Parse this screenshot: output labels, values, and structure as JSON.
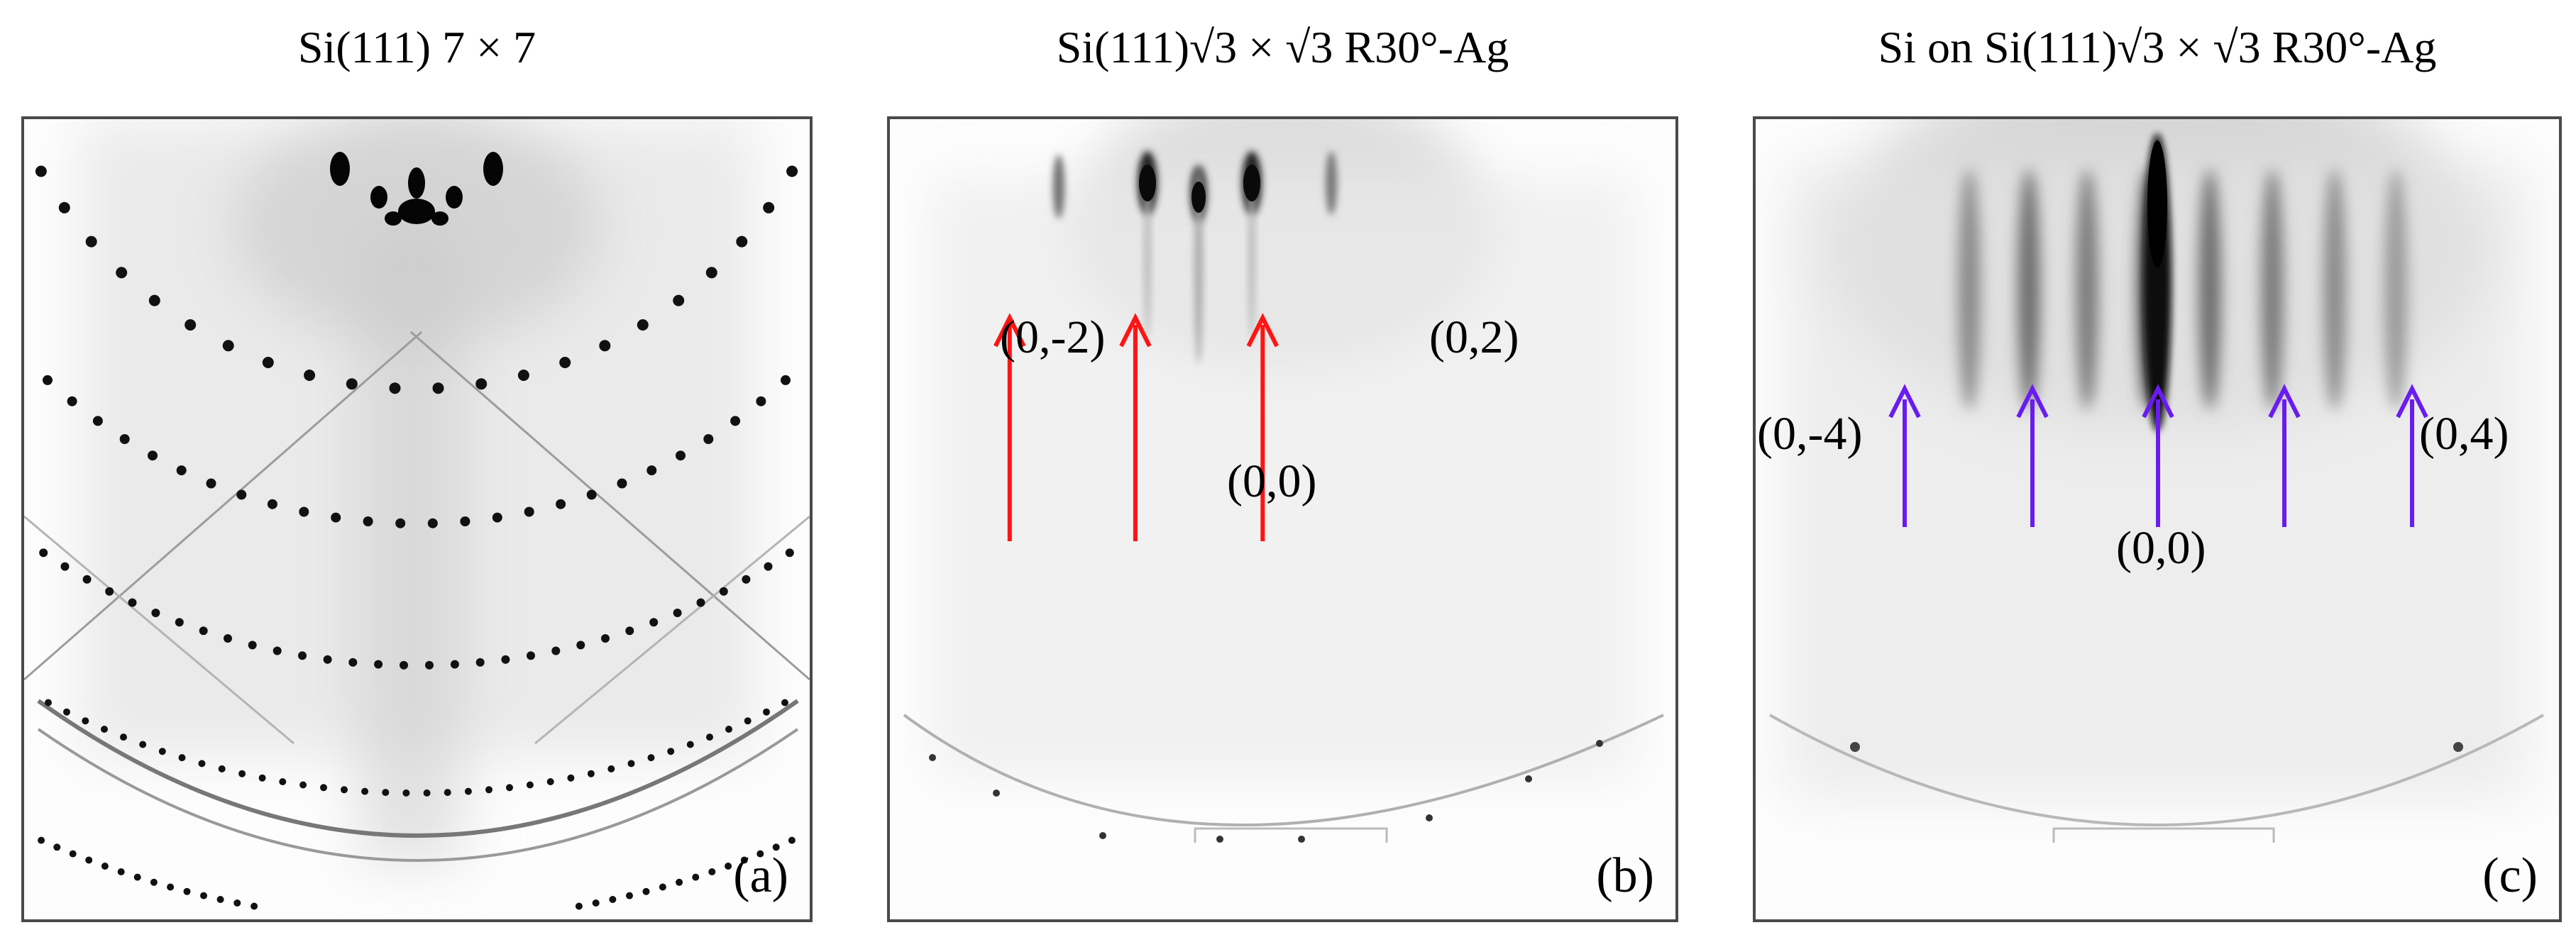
{
  "panels": [
    {
      "title": "Si(111) 7 × 7",
      "label": "(a)",
      "arrows": []
    },
    {
      "title": "Si(111)√3 × √3 R30°-Ag",
      "label": "(b)",
      "arrow_color": "#ff1414",
      "arrows": [
        {
          "label": "(0,-2)"
        },
        {
          "label": "(0,0)"
        },
        {
          "label": "(0,2)"
        }
      ]
    },
    {
      "title": "Si on Si(111)√3 × √3 R30°-Ag",
      "label": "(c)",
      "arrow_color": "#6a1cf0",
      "arrows": [
        {
          "label": "(0,-4)"
        },
        {
          "label": ""
        },
        {
          "label": "(0,0)"
        },
        {
          "label": ""
        },
        {
          "label": "(0,4)"
        }
      ]
    }
  ]
}
